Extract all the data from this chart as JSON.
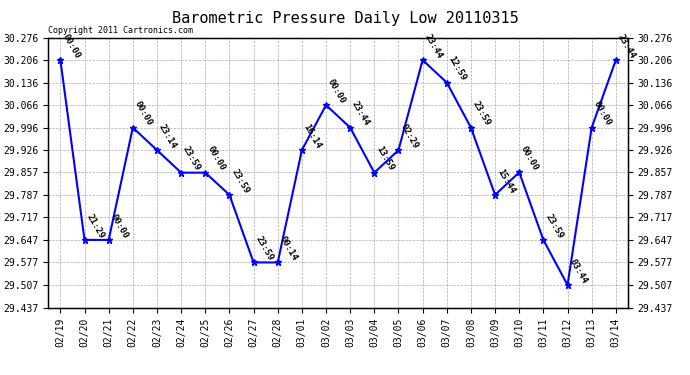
{
  "title": "Barometric Pressure Daily Low 20110315",
  "copyright": "Copyright 2011 Cartronics.com",
  "x_labels": [
    "02/19",
    "02/20",
    "02/21",
    "02/22",
    "02/23",
    "02/24",
    "02/25",
    "02/26",
    "02/27",
    "02/28",
    "03/01",
    "03/02",
    "03/03",
    "03/04",
    "03/05",
    "03/06",
    "03/07",
    "03/08",
    "03/09",
    "03/10",
    "03/11",
    "03/12",
    "03/13",
    "03/14"
  ],
  "y_values": [
    30.206,
    29.647,
    29.647,
    29.996,
    29.926,
    29.856,
    29.856,
    29.787,
    29.577,
    29.577,
    29.926,
    30.066,
    29.996,
    29.856,
    29.926,
    30.206,
    30.136,
    29.996,
    29.787,
    29.857,
    29.647,
    29.507,
    29.996,
    30.206
  ],
  "point_labels": [
    "00:00",
    "21:29",
    "00:00",
    "00:00",
    "23:14",
    "23:59",
    "00:00",
    "23:59",
    "23:59",
    "00:14",
    "16:14",
    "00:00",
    "23:44",
    "13:59",
    "02:29",
    "23:44",
    "12:59",
    "23:59",
    "15:44",
    "00:00",
    "23:59",
    "03:44",
    "00:00",
    "23:44"
  ],
  "ylim_min": 29.437,
  "ylim_max": 30.276,
  "yticks": [
    29.437,
    29.507,
    29.577,
    29.647,
    29.717,
    29.787,
    29.857,
    29.926,
    29.996,
    30.066,
    30.136,
    30.206,
    30.276
  ],
  "line_color": "blue",
  "marker_color": "blue",
  "bg_color": "white",
  "grid_color": "#aaaaaa",
  "title_fontsize": 11,
  "label_fontsize": 7,
  "point_label_fontsize": 6.5
}
